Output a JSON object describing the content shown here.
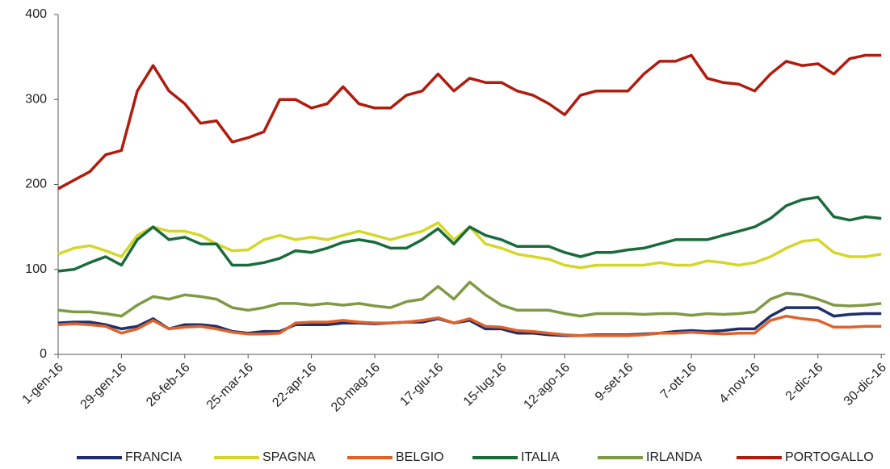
{
  "chart_data": {
    "type": "line",
    "categories": [
      "1-gen-16",
      null,
      null,
      null,
      "29-gen-16",
      null,
      null,
      null,
      "26-feb-16",
      null,
      null,
      null,
      "25-mar-16",
      null,
      null,
      null,
      "22-apr-16",
      null,
      null,
      null,
      "20-mag-16",
      null,
      null,
      null,
      "17-giu-16",
      null,
      null,
      null,
      "15-lug-16",
      null,
      null,
      null,
      "12-ago-16",
      null,
      null,
      null,
      "9-set-16",
      null,
      null,
      null,
      "7-ott-16",
      null,
      null,
      null,
      "4-nov-16",
      null,
      null,
      null,
      "2-dic-16",
      null,
      null,
      null,
      "30-dic-16"
    ],
    "series": [
      {
        "name": "FRANCIA",
        "color": "#1f2f6b",
        "values": [
          37,
          38,
          38,
          35,
          30,
          33,
          42,
          30,
          35,
          35,
          33,
          27,
          25,
          27,
          27,
          35,
          35,
          35,
          37,
          37,
          36,
          37,
          38,
          38,
          42,
          37,
          40,
          30,
          30,
          25,
          25,
          23,
          22,
          22,
          23,
          23,
          23,
          24,
          25,
          27,
          28,
          27,
          28,
          30,
          30,
          45,
          55,
          55,
          55,
          45,
          47,
          48,
          48
        ]
      },
      {
        "name": "SPAGNA",
        "color": "#d6d62a",
        "values": [
          118,
          125,
          128,
          122,
          115,
          140,
          150,
          145,
          145,
          140,
          130,
          122,
          123,
          135,
          140,
          135,
          138,
          135,
          140,
          145,
          140,
          135,
          140,
          145,
          155,
          135,
          150,
          130,
          125,
          118,
          115,
          112,
          105,
          102,
          105,
          105,
          105,
          105,
          108,
          105,
          105,
          110,
          108,
          105,
          108,
          115,
          125,
          133,
          135,
          120,
          115,
          115,
          118
        ]
      },
      {
        "name": "BELGIO",
        "color": "#e0622a",
        "values": [
          35,
          36,
          35,
          33,
          25,
          30,
          40,
          30,
          32,
          33,
          30,
          26,
          24,
          24,
          25,
          37,
          38,
          38,
          40,
          38,
          37,
          37,
          38,
          40,
          43,
          37,
          42,
          33,
          32,
          28,
          27,
          25,
          23,
          22,
          22,
          22,
          22,
          23,
          25,
          25,
          26,
          25,
          24,
          25,
          25,
          40,
          45,
          42,
          40,
          32,
          32,
          33,
          33
        ]
      },
      {
        "name": "ITALIA",
        "color": "#1a6b3c",
        "values": [
          98,
          100,
          108,
          115,
          105,
          135,
          150,
          135,
          138,
          130,
          130,
          105,
          105,
          108,
          113,
          122,
          120,
          125,
          132,
          135,
          132,
          125,
          125,
          135,
          148,
          130,
          150,
          140,
          135,
          127,
          127,
          127,
          120,
          115,
          120,
          120,
          123,
          125,
          130,
          135,
          135,
          135,
          140,
          145,
          150,
          160,
          175,
          182,
          185,
          162,
          158,
          162,
          160
        ]
      },
      {
        "name": "IRLANDA",
        "color": "#7f9a45",
        "values": [
          52,
          50,
          50,
          48,
          45,
          58,
          68,
          65,
          70,
          68,
          65,
          55,
          52,
          55,
          60,
          60,
          58,
          60,
          58,
          60,
          57,
          55,
          62,
          65,
          80,
          65,
          85,
          70,
          58,
          52,
          52,
          52,
          48,
          45,
          48,
          48,
          48,
          47,
          48,
          48,
          46,
          48,
          47,
          48,
          50,
          65,
          72,
          70,
          65,
          58,
          57,
          58,
          60
        ]
      },
      {
        "name": "PORTOGALLO",
        "color": "#b01c0e",
        "values": [
          195,
          205,
          215,
          235,
          240,
          310,
          340,
          310,
          295,
          272,
          275,
          250,
          255,
          262,
          300,
          300,
          290,
          295,
          315,
          295,
          290,
          290,
          305,
          310,
          330,
          310,
          325,
          320,
          320,
          310,
          305,
          295,
          282,
          305,
          310,
          310,
          310,
          330,
          345,
          345,
          352,
          325,
          320,
          318,
          310,
          330,
          345,
          340,
          342,
          330,
          348,
          352,
          352
        ]
      }
    ],
    "ylim": [
      0,
      400
    ],
    "yticks": [
      0,
      100,
      200,
      300,
      400
    ],
    "legend": "bottom"
  }
}
